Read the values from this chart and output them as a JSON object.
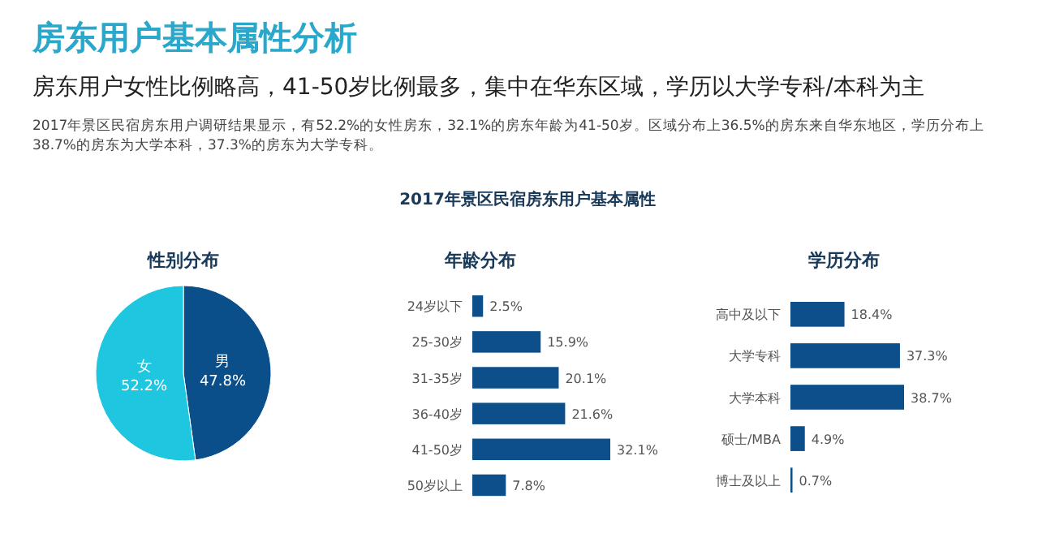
{
  "chart_data": [
    {
      "type": "other",
      "title": "房东用户基本属性分析",
      "subtitle": "房东用户女性比例略高，41-50岁比例最多，集中在华东区域，学历以大学专科/本科为主",
      "annotations": [
        "2017年景区民宿房东用户调研结果显示，有52.2%的女性房东，32.1%的房东年龄为41-50岁。区域分布上36.5%的房东来自华东地区，学历分布上38.7%的房东为大学本科，37.3%的房东为大学专科。",
        "2017年景区民宿房东用户基本属性"
      ]
    },
    {
      "type": "pie",
      "title": "性别分布",
      "categories": [
        "男",
        "女"
      ],
      "values": [
        47.8,
        52.2
      ],
      "colors": [
        "#0b4f8a",
        "#1fc6df"
      ],
      "value_labels": [
        "47.8%",
        "52.2%"
      ]
    },
    {
      "type": "bar",
      "orientation": "horizontal",
      "title": "年龄分布",
      "categories": [
        "24岁以下",
        "25-30岁",
        "31-35岁",
        "36-40岁",
        "41-50岁",
        "50岁以上"
      ],
      "values": [
        2.5,
        15.9,
        20.1,
        21.6,
        32.1,
        7.8
      ],
      "color": "#0d4f8b",
      "value_labels": [
        "2.5%",
        "15.9%",
        "20.1%",
        "21.6%",
        "32.1%",
        "7.8%"
      ]
    },
    {
      "type": "bar",
      "orientation": "horizontal",
      "title": "学历分布",
      "categories": [
        "高中及以下",
        "大学专科",
        "大学本科",
        "硕士/MBA",
        "博士及以上"
      ],
      "values": [
        18.4,
        37.3,
        38.7,
        4.9,
        0.7
      ],
      "color": "#0d4f8b",
      "value_labels": [
        "18.4%",
        "37.3%",
        "38.7%",
        "4.9%",
        "0.7%"
      ]
    }
  ]
}
